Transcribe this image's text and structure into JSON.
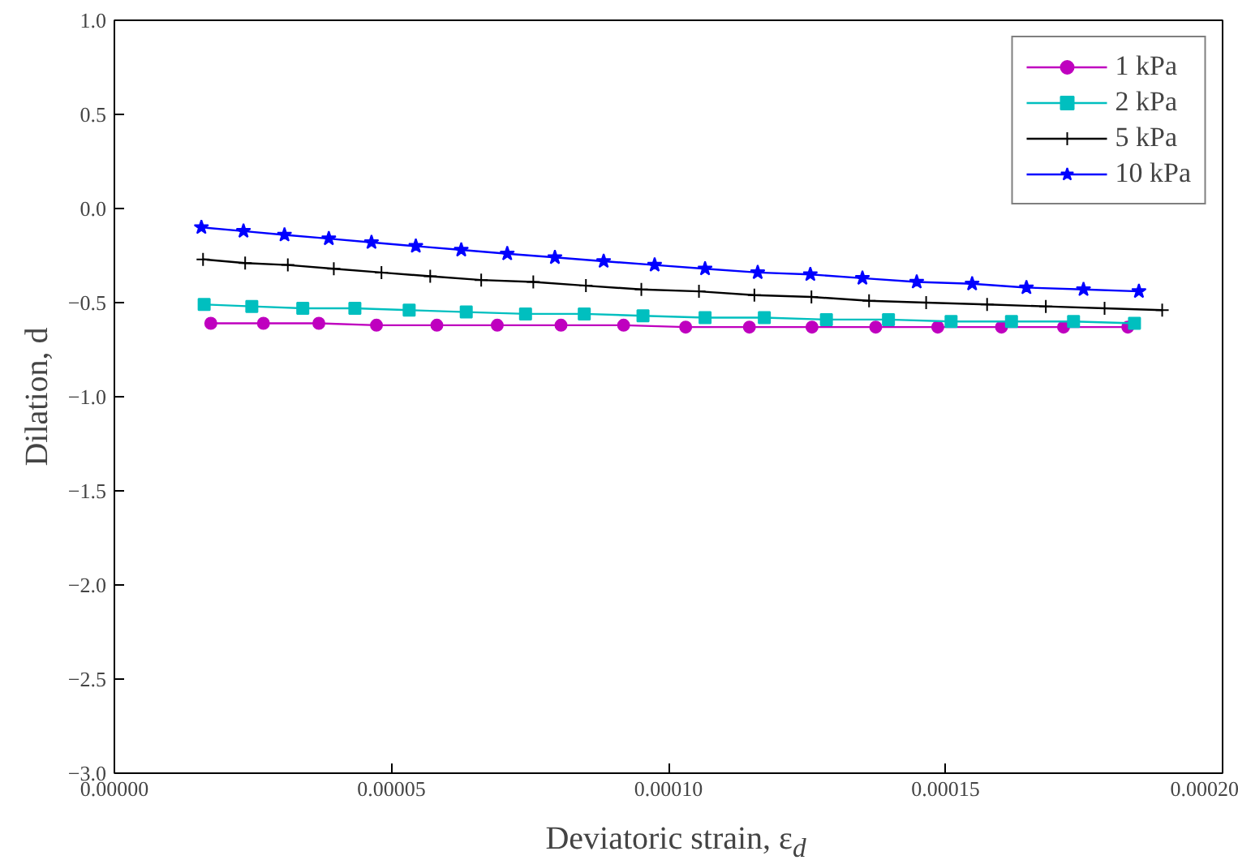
{
  "chart_data": {
    "type": "line",
    "xlabel": "Deviatoric strain, ε$_{d}$",
    "ylabel": "Dilation, d",
    "xlim": [
      0,
      0.0002
    ],
    "ylim": [
      -3.0,
      1.0
    ],
    "xticks": [
      {
        "value": 0,
        "label": "0.00000"
      },
      {
        "value": 5e-05,
        "label": "0.00005"
      },
      {
        "value": 0.0001,
        "label": "0.00010"
      },
      {
        "value": 0.00015,
        "label": "0.00015"
      },
      {
        "value": 0.0002,
        "label": "0.00020"
      }
    ],
    "yticks": [
      {
        "value": -3.0,
        "label": "−3.0"
      },
      {
        "value": -2.5,
        "label": "−2.5"
      },
      {
        "value": -2.0,
        "label": "−2.0"
      },
      {
        "value": -1.5,
        "label": "−1.5"
      },
      {
        "value": -1.0,
        "label": "−1.0"
      },
      {
        "value": -0.5,
        "label": "−0.5"
      },
      {
        "value": 0.0,
        "label": "0.0"
      },
      {
        "value": 0.5,
        "label": "0.5"
      },
      {
        "value": 1.0,
        "label": "1.0"
      }
    ],
    "grid": false,
    "legend": "top right",
    "series": [
      {
        "name": "1 kPa",
        "color": "#bf00bf",
        "marker": "circle",
        "x": [
          1.74e-05,
          2.69e-05,
          3.69e-05,
          4.73e-05,
          5.82e-05,
          6.91e-05,
          8.06e-05,
          9.19e-05,
          0.0001031,
          0.0001146,
          0.0001259,
          0.0001374,
          0.0001486,
          0.0001601,
          0.0001713,
          0.0001829
        ],
        "values": [
          -0.61,
          -0.61,
          -0.61,
          -0.62,
          -0.62,
          -0.62,
          -0.62,
          -0.62,
          -0.63,
          -0.63,
          -0.63,
          -0.63,
          -0.63,
          -0.63,
          -0.63,
          -0.63
        ]
      },
      {
        "name": "2 kPa",
        "color": "#00bfbf",
        "marker": "square",
        "x": [
          1.62e-05,
          2.48e-05,
          3.4e-05,
          4.34e-05,
          5.32e-05,
          6.35e-05,
          7.42e-05,
          8.48e-05,
          9.54e-05,
          0.0001066,
          0.0001173,
          0.0001285,
          0.0001397,
          0.000151,
          0.0001619,
          0.0001731,
          0.0001841
        ],
        "values": [
          -0.51,
          -0.52,
          -0.53,
          -0.53,
          -0.54,
          -0.55,
          -0.56,
          -0.56,
          -0.57,
          -0.58,
          -0.58,
          -0.59,
          -0.59,
          -0.6,
          -0.6,
          -0.6,
          -0.61
        ]
      },
      {
        "name": "5 kPa",
        "color": "#000000",
        "marker": "cross",
        "x": [
          1.6e-05,
          2.36e-05,
          3.13e-05,
          3.96e-05,
          4.82e-05,
          5.7e-05,
          6.62e-05,
          7.56e-05,
          8.51e-05,
          9.51e-05,
          0.0001055,
          0.0001155,
          0.0001258,
          0.0001362,
          0.0001465,
          0.0001575,
          0.0001681,
          0.0001787,
          0.0001891
        ],
        "values": [
          -0.27,
          -0.29,
          -0.3,
          -0.32,
          -0.34,
          -0.36,
          -0.38,
          -0.39,
          -0.41,
          -0.43,
          -0.44,
          -0.46,
          -0.47,
          -0.49,
          -0.5,
          -0.51,
          -0.52,
          -0.53,
          -0.54
        ]
      },
      {
        "name": "10 kPa",
        "color": "#0000ff",
        "marker": "star",
        "x": [
          1.57e-05,
          2.33e-05,
          3.07e-05,
          3.87e-05,
          4.64e-05,
          5.44e-05,
          6.26e-05,
          7.09e-05,
          7.95e-05,
          8.83e-05,
          9.75e-05,
          0.0001066,
          0.0001161,
          0.0001256,
          0.000135,
          0.0001448,
          0.0001548,
          0.0001646,
          0.0001749,
          0.0001849
        ],
        "values": [
          -0.1,
          -0.12,
          -0.14,
          -0.16,
          -0.18,
          -0.2,
          -0.22,
          -0.24,
          -0.26,
          -0.28,
          -0.3,
          -0.32,
          -0.34,
          -0.35,
          -0.37,
          -0.39,
          -0.4,
          -0.42,
          -0.43,
          -0.44
        ]
      }
    ]
  }
}
